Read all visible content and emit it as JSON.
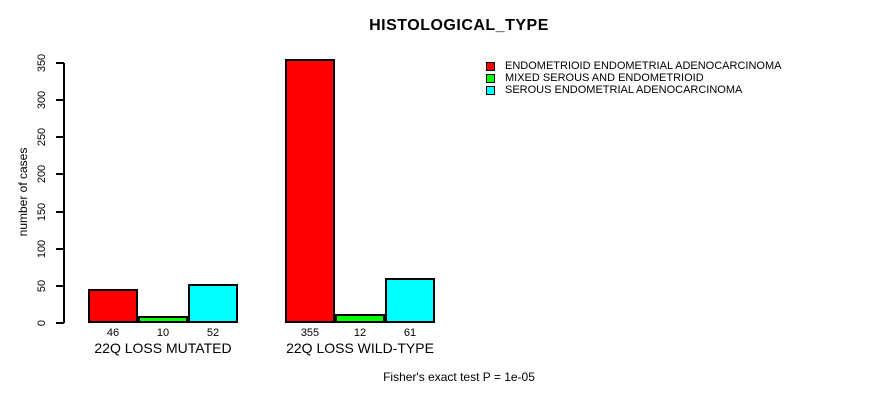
{
  "chart_data": {
    "type": "bar",
    "title": "HISTOLOGICAL_TYPE",
    "xlabel": "",
    "ylabel": "number of cases",
    "categories": [
      "22Q LOSS MUTATED",
      "22Q LOSS WILD-TYPE"
    ],
    "series": [
      {
        "name": "ENDOMETRIOID ENDOMETRIAL ADENOCARCINOMA",
        "color": "#ff0000",
        "values": [
          46,
          355
        ]
      },
      {
        "name": "MIXED SEROUS AND ENDOMETRIOID",
        "color": "#00ff00",
        "values": [
          10,
          12
        ]
      },
      {
        "name": "SEROUS ENDOMETRIAL ADENOCARCINOMA",
        "color": "#00ffff",
        "values": [
          52,
          61
        ]
      }
    ],
    "bar_value_labels": [
      [
        "46",
        "355"
      ],
      [
        "10",
        "12"
      ],
      [
        "52",
        "61"
      ]
    ],
    "ylim": [
      0,
      350
    ],
    "yticks": [
      0,
      50,
      100,
      150,
      200,
      250,
      300,
      350
    ],
    "grid": false,
    "legend_position": "top-right",
    "bar_border_color": "#000000",
    "footer": "Fisher's exact test P = 1e-05"
  }
}
